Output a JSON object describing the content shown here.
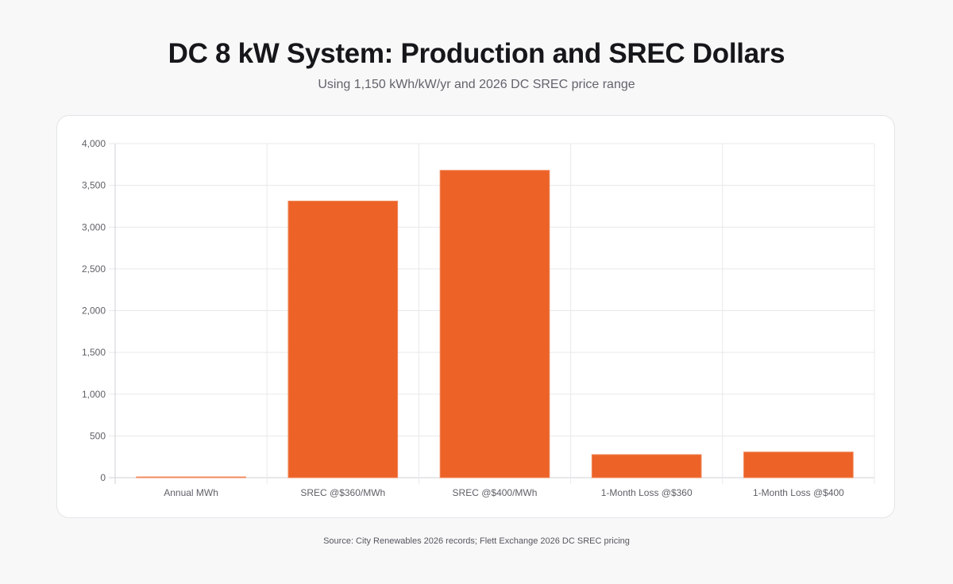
{
  "header": {
    "title": "DC 8 kW System: Production and SREC Dollars",
    "subtitle": "Using 1,150 kWh/kW/yr and 2026 DC SREC price range"
  },
  "footer": {
    "source": "Source: City Renewables 2026 records; Flett Exchange 2026 DC SREC pricing"
  },
  "chart_data": {
    "type": "bar",
    "categories": [
      "Annual MWh",
      "SREC @$360/MWh",
      "SREC @$400/MWh",
      "1-Month Loss @$360",
      "1-Month Loss @$400"
    ],
    "values": [
      9.2,
      3312,
      3680,
      276,
      307
    ],
    "ylim": [
      0,
      4000
    ],
    "yticks": [
      0,
      500,
      1000,
      1500,
      2000,
      2500,
      3000,
      3500,
      4000
    ],
    "ytick_labels": [
      "0",
      "500",
      "1,000",
      "1,500",
      "2,000",
      "2,500",
      "3,000",
      "3,500",
      "4,000"
    ],
    "grid": true,
    "legend": "none",
    "colors": {
      "bar": "#ec6227",
      "bar_border": "#f08a5d",
      "grid": "#e9e9ec",
      "axis": "#cfd0d4"
    }
  }
}
